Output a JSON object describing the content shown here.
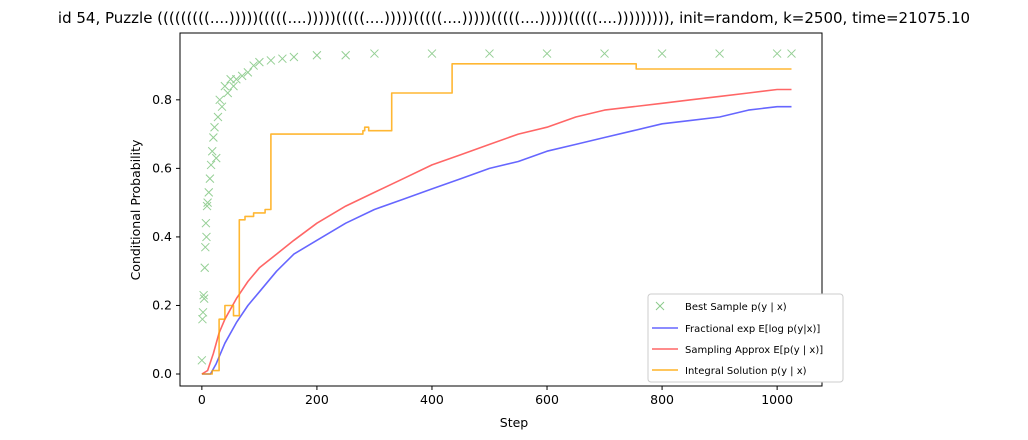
{
  "chart_data": {
    "type": "line",
    "title": "id 54, Puzzle (((((((((....)))))(((((....)))))(((((....)))))(((((....)))))(((((....)))))(((((....))))))))), init=random, k=2500, time=21075.10",
    "xlabel": "Step",
    "ylabel": "Conditional Probability",
    "xlim": [
      -38,
      1078
    ],
    "ylim": [
      -0.035,
      0.995
    ],
    "xticks": [
      0,
      200,
      400,
      600,
      800,
      1000
    ],
    "yticks": [
      0.0,
      0.2,
      0.4,
      0.6,
      0.8
    ],
    "ytick_labels": [
      "0.0",
      "0.2",
      "0.4",
      "0.6",
      "0.8"
    ],
    "grid": false,
    "legend_position": "lower-right",
    "series": [
      {
        "name": "Best Sample p(y | x)",
        "style": "scatter-x",
        "color": "#2ca02c",
        "x": [
          0,
          1,
          2,
          3,
          4,
          5,
          6,
          7,
          8,
          9,
          10,
          12,
          14,
          16,
          18,
          20,
          22,
          25,
          28,
          31,
          35,
          40,
          45,
          50,
          55,
          60,
          70,
          80,
          90,
          100,
          120,
          140,
          160,
          200,
          250,
          300,
          400,
          500,
          600,
          700,
          800,
          900,
          1000,
          1025
        ],
        "y": [
          0.04,
          0.16,
          0.18,
          0.23,
          0.22,
          0.31,
          0.37,
          0.44,
          0.4,
          0.49,
          0.5,
          0.53,
          0.57,
          0.61,
          0.65,
          0.69,
          0.72,
          0.63,
          0.75,
          0.8,
          0.78,
          0.84,
          0.82,
          0.86,
          0.84,
          0.86,
          0.87,
          0.88,
          0.9,
          0.91,
          0.915,
          0.92,
          0.925,
          0.93,
          0.93,
          0.935,
          0.935,
          0.935,
          0.935,
          0.935,
          0.935,
          0.935,
          0.935,
          0.935
        ]
      },
      {
        "name": "Fractional exp E[log p(y|x)]",
        "style": "line",
        "color": "#0000ff",
        "x": [
          0,
          15,
          25,
          40,
          60,
          80,
          100,
          130,
          160,
          200,
          250,
          300,
          350,
          400,
          450,
          500,
          550,
          600,
          650,
          700,
          750,
          800,
          850,
          900,
          950,
          1000,
          1025
        ],
        "y": [
          0.0,
          0.0,
          0.03,
          0.09,
          0.15,
          0.2,
          0.24,
          0.3,
          0.35,
          0.39,
          0.44,
          0.48,
          0.51,
          0.54,
          0.57,
          0.6,
          0.62,
          0.65,
          0.67,
          0.69,
          0.71,
          0.73,
          0.74,
          0.75,
          0.77,
          0.78,
          0.78
        ]
      },
      {
        "name": "Sampling Approx E[p(y | x)]",
        "style": "line",
        "color": "#ff0000",
        "x": [
          0,
          10,
          20,
          30,
          40,
          60,
          80,
          100,
          130,
          160,
          200,
          250,
          300,
          350,
          400,
          450,
          500,
          550,
          600,
          650,
          700,
          750,
          800,
          850,
          900,
          950,
          1000,
          1025
        ],
        "y": [
          0.0,
          0.01,
          0.06,
          0.12,
          0.16,
          0.22,
          0.27,
          0.31,
          0.35,
          0.39,
          0.44,
          0.49,
          0.53,
          0.57,
          0.61,
          0.64,
          0.67,
          0.7,
          0.72,
          0.75,
          0.77,
          0.78,
          0.79,
          0.8,
          0.81,
          0.82,
          0.83,
          0.83
        ]
      },
      {
        "name": "Integral Solution p(y | x)",
        "style": "step",
        "color": "#ffa500",
        "x": [
          0,
          18,
          30,
          40,
          55,
          65,
          75,
          90,
          110,
          120,
          140,
          280,
          283,
          290,
          325,
          330,
          430,
          435,
          750,
          755,
          1025
        ],
        "y": [
          0.0,
          0.01,
          0.16,
          0.2,
          0.17,
          0.45,
          0.46,
          0.47,
          0.48,
          0.7,
          0.7,
          0.71,
          0.72,
          0.71,
          0.71,
          0.82,
          0.82,
          0.905,
          0.905,
          0.89,
          0.89
        ]
      }
    ]
  },
  "legend": {
    "entries": [
      {
        "label": "Best Sample p(y | x)"
      },
      {
        "label": "Fractional exp E[log p(y|x)]"
      },
      {
        "label": "Sampling Approx E[p(y | x)]"
      },
      {
        "label": "Integral Solution p(y | x)"
      }
    ]
  }
}
